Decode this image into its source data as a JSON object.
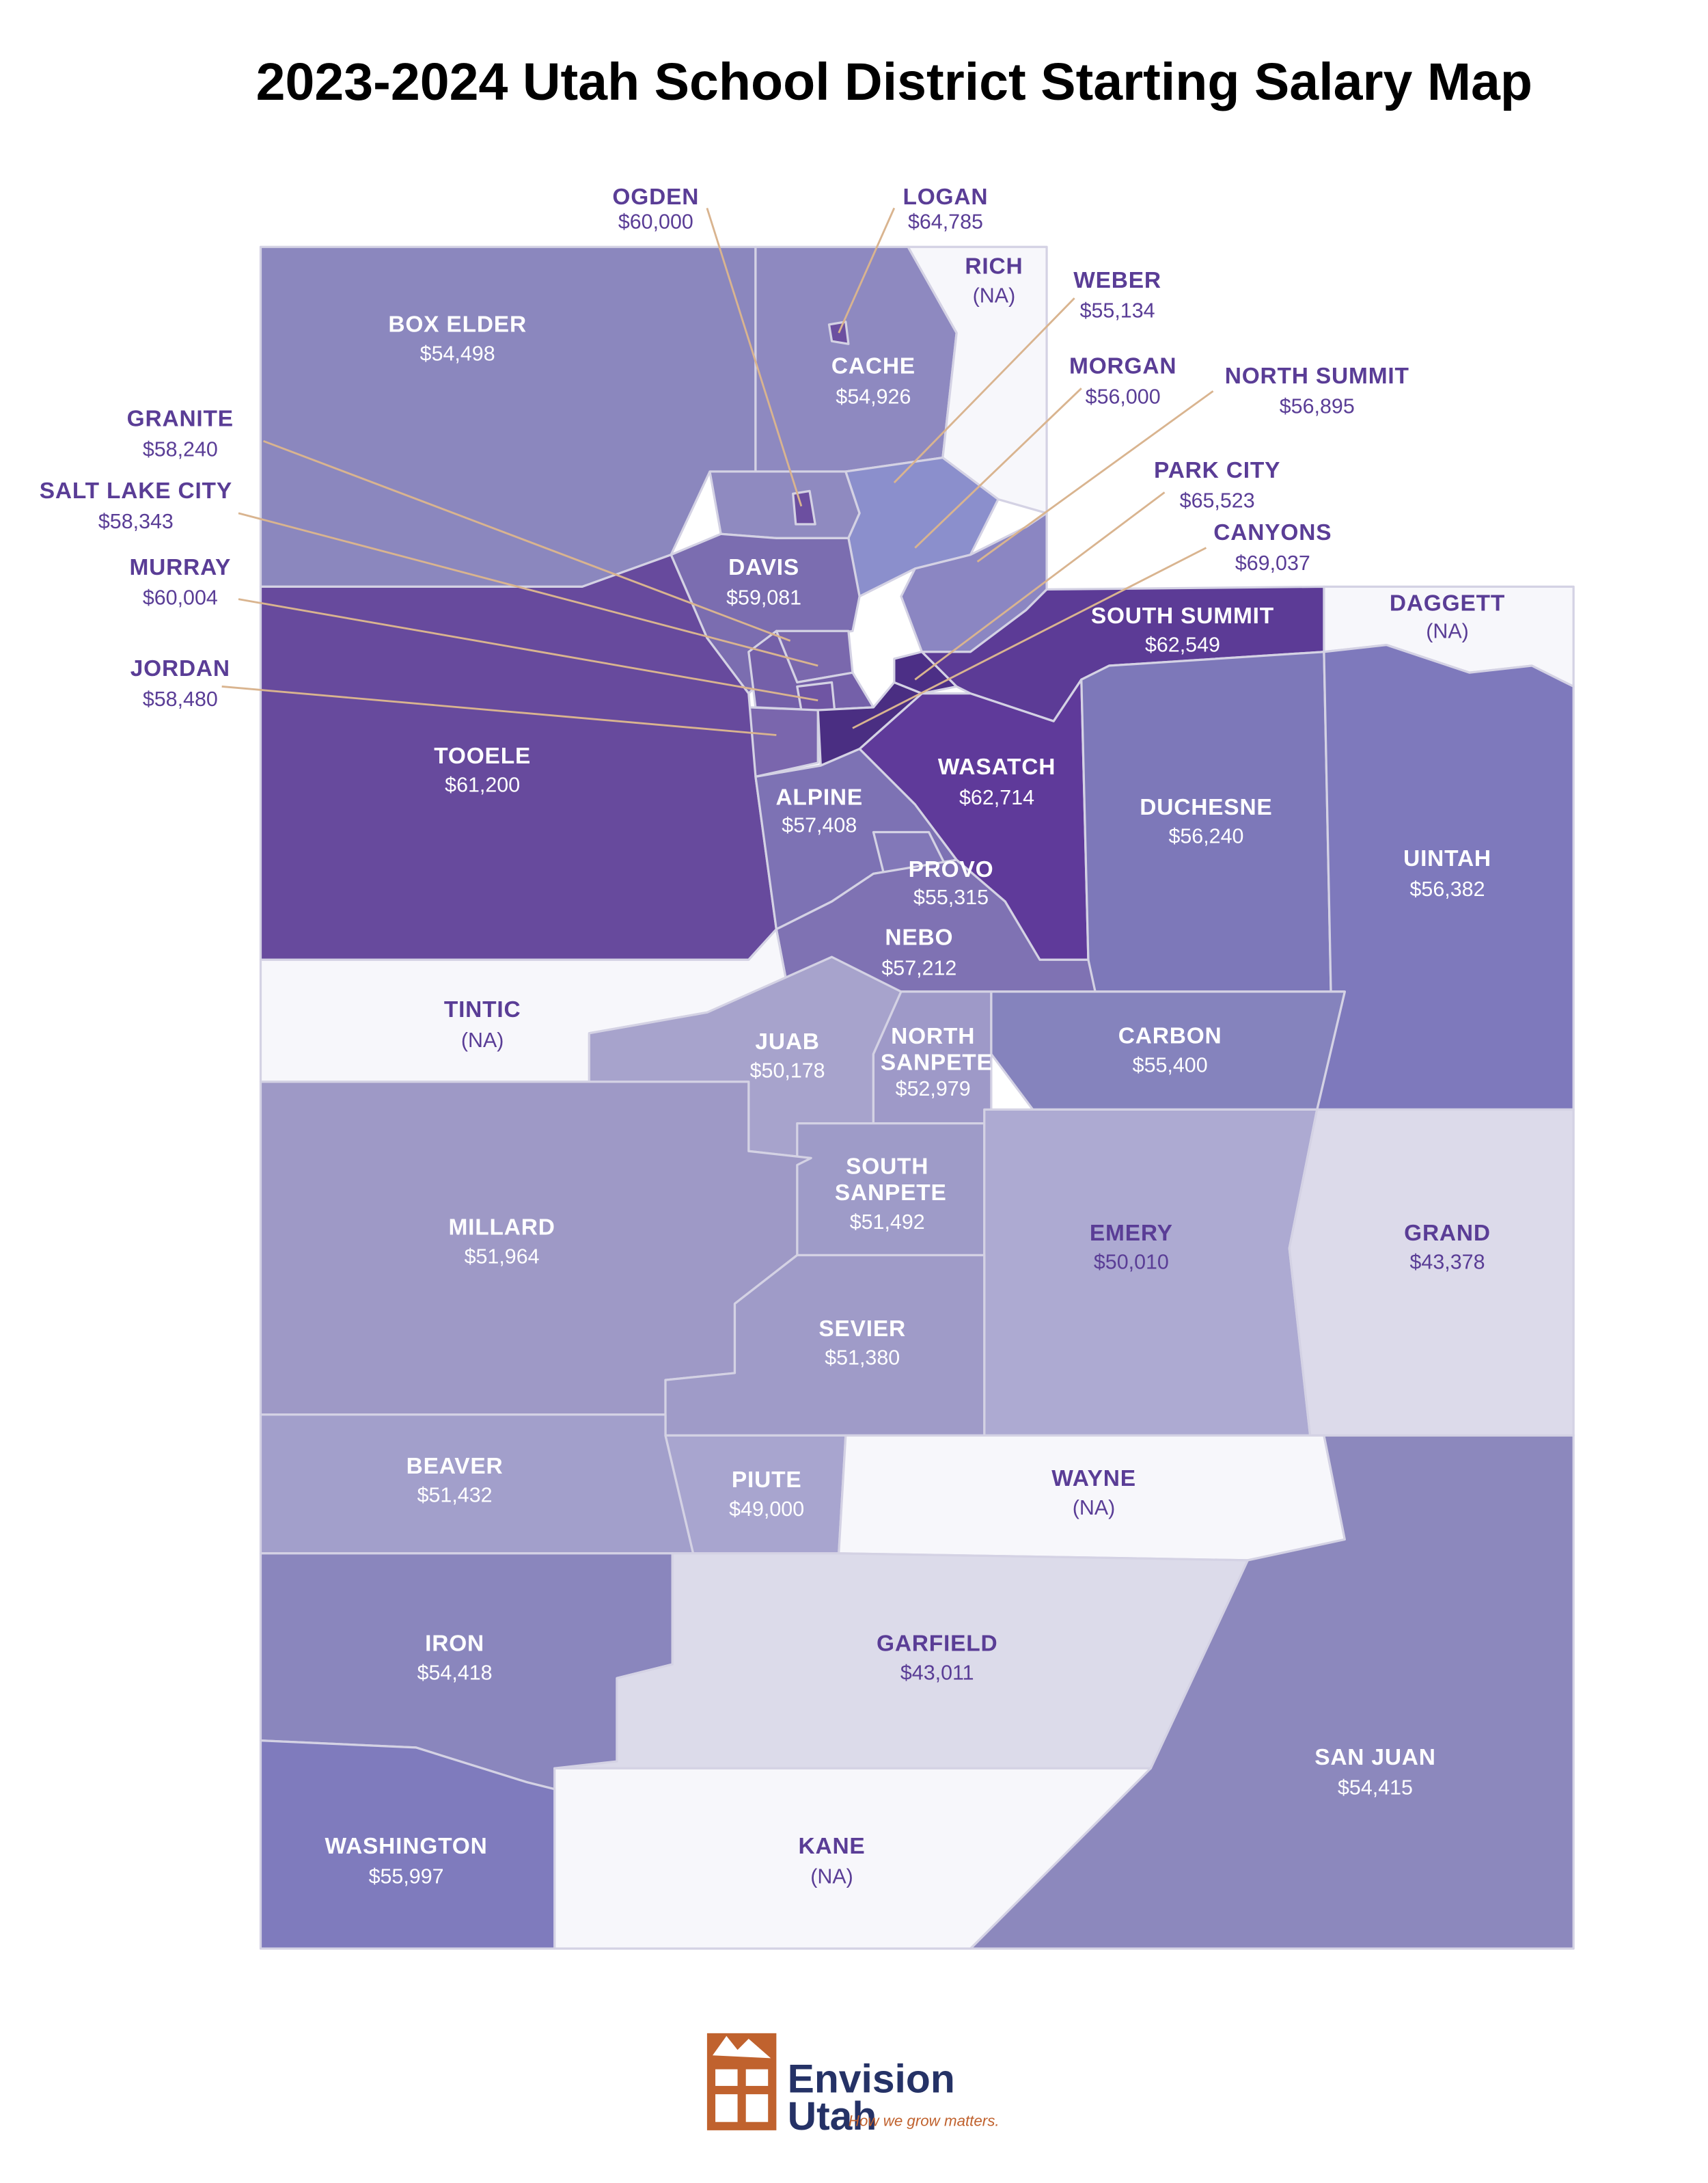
{
  "title": "2023-2024 Utah School District Starting Salary Map",
  "districts": [
    {
      "name": "BOX ELDER",
      "salary": "$54,498",
      "color": "#8b87be"
    },
    {
      "name": "CACHE",
      "salary": "$54,926",
      "color": "#8e89c0"
    },
    {
      "name": "RICH",
      "salary": "(NA)",
      "color": "#f7f7fb"
    },
    {
      "name": "WEBER",
      "salary": "$55,134",
      "color": "#8f8ac0"
    },
    {
      "name": "MORGAN",
      "salary": "$56,000",
      "color": "#8b8fcc"
    },
    {
      "name": "NORTH SUMMIT",
      "salary": "$56,895",
      "color": "#8b86c2"
    },
    {
      "name": "DAGGETT",
      "salary": "(NA)",
      "color": "#f7f7fb"
    },
    {
      "name": "DAVIS",
      "salary": "$59,081",
      "color": "#7b6db0"
    },
    {
      "name": "SALT LAKE CITY",
      "salary": "$58,343",
      "color": "#7a68ad"
    },
    {
      "name": "GRANITE",
      "salary": "$58,240",
      "color": "#7460a9"
    },
    {
      "name": "MURRAY",
      "salary": "$60,004",
      "color": "#6f55a3"
    },
    {
      "name": "JORDAN",
      "salary": "$58,480",
      "color": "#7a66ad"
    },
    {
      "name": "CANYONS",
      "salary": "$69,037",
      "color": "#4a2e82"
    },
    {
      "name": "PARK CITY",
      "salary": "$65,523",
      "color": "#4c2f86"
    },
    {
      "name": "SOUTH SUMMIT",
      "salary": "$62,549",
      "color": "#5c3b96"
    },
    {
      "name": "WASATCH",
      "salary": "$62,714",
      "color": "#5f3a9a"
    },
    {
      "name": "TOOELE",
      "salary": "$61,200",
      "color": "#674a9d"
    },
    {
      "name": "ALPINE",
      "salary": "$57,408",
      "color": "#7d72b4"
    },
    {
      "name": "PROVO",
      "salary": "$55,315",
      "color": "#8278b8"
    },
    {
      "name": "NEBO",
      "salary": "$57,212",
      "color": "#7f72b3"
    },
    {
      "name": "DUCHESNE",
      "salary": "$56,240",
      "color": "#7d78b9"
    },
    {
      "name": "UINTAH",
      "salary": "$56,382",
      "color": "#7e79bc"
    },
    {
      "name": "TINTIC",
      "salary": "(NA)",
      "color": "#f7f7fb"
    },
    {
      "name": "JUAB",
      "salary": "$50,178",
      "color": "#a7a3cc"
    },
    {
      "name": "NORTH SANPETE",
      "salary": "$52,979",
      "color": "#9e99c8"
    },
    {
      "name": "CARBON",
      "salary": "$55,400",
      "color": "#8583bd"
    },
    {
      "name": "SOUTH SANPETE",
      "salary": "$51,492",
      "color": "#9e9bc8"
    },
    {
      "name": "EMERY",
      "salary": "$50,010",
      "color": "#adaad2"
    },
    {
      "name": "GRAND",
      "salary": "$43,378",
      "color": "#dcdaea"
    },
    {
      "name": "MILLARD",
      "salary": "$51,964",
      "color": "#9e99c6"
    },
    {
      "name": "SEVIER",
      "salary": "$51,380",
      "color": "#9f9bc8"
    },
    {
      "name": "BEAVER",
      "salary": "$51,432",
      "color": "#a29fcb"
    },
    {
      "name": "PIUTE",
      "salary": "$49,000",
      "color": "#a8a5cf"
    },
    {
      "name": "WAYNE",
      "salary": "(NA)",
      "color": "#f7f7fb"
    },
    {
      "name": "SAN JUAN",
      "salary": "$54,415",
      "color": "#8c88bd"
    },
    {
      "name": "IRON",
      "salary": "$54,418",
      "color": "#8a86bd"
    },
    {
      "name": "GARFIELD",
      "salary": "$43,011",
      "color": "#dcdbea"
    },
    {
      "name": "KANE",
      "salary": "(NA)",
      "color": "#f7f7fb"
    },
    {
      "name": "WASHINGTON",
      "salary": "$55,997",
      "color": "#7f7bbd"
    },
    {
      "name": "OGDEN",
      "salary": "$60,000",
      "color": "#6c4fa0"
    },
    {
      "name": "LOGAN",
      "salary": "$64,785",
      "color": "#6c4fa0"
    }
  ],
  "logo": {
    "line1": "Envision",
    "line2": "Utah",
    "tagline": "How we grow matters."
  }
}
